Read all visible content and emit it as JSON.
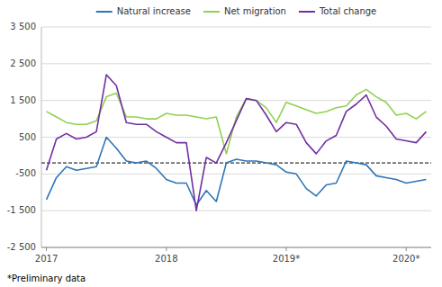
{
  "chart_data": {
    "type": "line",
    "categories": [
      "2017",
      null,
      null,
      null,
      null,
      null,
      null,
      null,
      null,
      null,
      null,
      null,
      "2018",
      null,
      null,
      null,
      null,
      null,
      null,
      null,
      null,
      null,
      null,
      null,
      "2019*",
      null,
      null,
      null,
      null,
      null,
      null,
      null,
      null,
      null,
      null,
      null,
      "2020*",
      null,
      null
    ],
    "series": [
      {
        "name": "Natural increase",
        "color": "#2e75b6",
        "values": [
          -1200,
          -600,
          -300,
          -400,
          -350,
          -300,
          500,
          200,
          -150,
          -200,
          -150,
          -350,
          -650,
          -750,
          -750,
          -1350,
          -950,
          -1250,
          -200,
          -100,
          -150,
          -150,
          -200,
          -250,
          -450,
          -500,
          -900,
          -1100,
          -800,
          -750,
          -150,
          -200,
          -250,
          -550,
          -600,
          -650,
          -750,
          -700,
          -650
        ]
      },
      {
        "name": "Net migration",
        "color": "#92d050",
        "values": [
          1200,
          1050,
          900,
          850,
          850,
          950,
          1600,
          1700,
          1050,
          1050,
          1000,
          1000,
          1150,
          1100,
          1100,
          1050,
          1000,
          1050,
          50,
          1050,
          1550,
          1500,
          1300,
          900,
          1450,
          1350,
          1250,
          1150,
          1200,
          1300,
          1350,
          1650,
          1800,
          1600,
          1450,
          1100,
          1150,
          1000,
          1200
        ]
      },
      {
        "name": "Total change",
        "color": "#7030a0",
        "values": [
          -400,
          450,
          600,
          450,
          500,
          650,
          2200,
          1900,
          900,
          850,
          850,
          650,
          500,
          350,
          350,
          -1500,
          -50,
          -200,
          350,
          950,
          1550,
          1500,
          1100,
          650,
          900,
          850,
          350,
          50,
          400,
          550,
          1200,
          1400,
          1650,
          1050,
          800,
          450,
          400,
          350,
          650
        ]
      }
    ],
    "ylim": [
      -2500,
      3500
    ],
    "yticks": [
      {
        "value": -2500,
        "label": "-2 500"
      },
      {
        "value": -1500,
        "label": "-1 500"
      },
      -500,
      500,
      {
        "value": 1500,
        "label": "1 500"
      },
      {
        "value": 2500,
        "label": "2 500"
      },
      {
        "value": 3500,
        "label": "3 500"
      }
    ],
    "reference_line": -200,
    "grid": "y",
    "legend": "top",
    "footnote": "*Preliminary data"
  }
}
